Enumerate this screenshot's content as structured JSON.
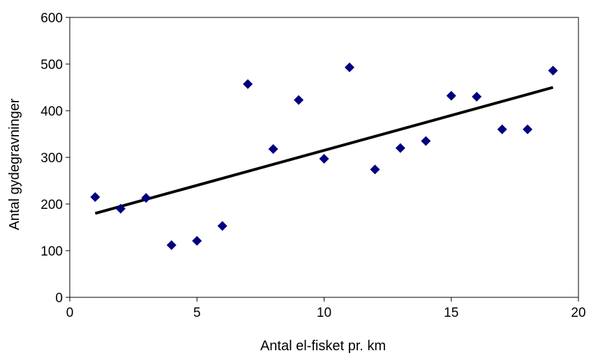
{
  "chart_data": {
    "type": "scatter",
    "title": "",
    "xlabel": "Antal el-fisket pr. km",
    "ylabel": "Antal gydegravninger",
    "xlim": [
      0,
      20
    ],
    "ylim": [
      0,
      600
    ],
    "x_ticks": [
      0,
      5,
      10,
      15,
      20
    ],
    "y_ticks": [
      0,
      100,
      200,
      300,
      400,
      500,
      600
    ],
    "x_tick_labels": [
      "0",
      "5",
      "10",
      "15",
      "20"
    ],
    "y_tick_labels": [
      "0",
      "100",
      "200",
      "300",
      "400",
      "500",
      "600"
    ],
    "grid": false,
    "legend": "none",
    "marker": "diamond",
    "series": [
      {
        "x": [
          1,
          2,
          3,
          4,
          5,
          6,
          7,
          8,
          9,
          10,
          11,
          12,
          13,
          14,
          15,
          16,
          17,
          18,
          19
        ],
        "y": [
          215,
          190,
          213,
          112,
          121,
          153,
          457,
          318,
          423,
          297,
          493,
          274,
          320,
          335,
          432,
          430,
          360,
          360,
          486
        ]
      }
    ],
    "trendline": {
      "type": "linear",
      "x": [
        1,
        19
      ],
      "y": [
        180,
        450
      ]
    },
    "colors": {
      "marker": "#00007f",
      "trendline": "#000000",
      "axis": "#000000"
    }
  }
}
